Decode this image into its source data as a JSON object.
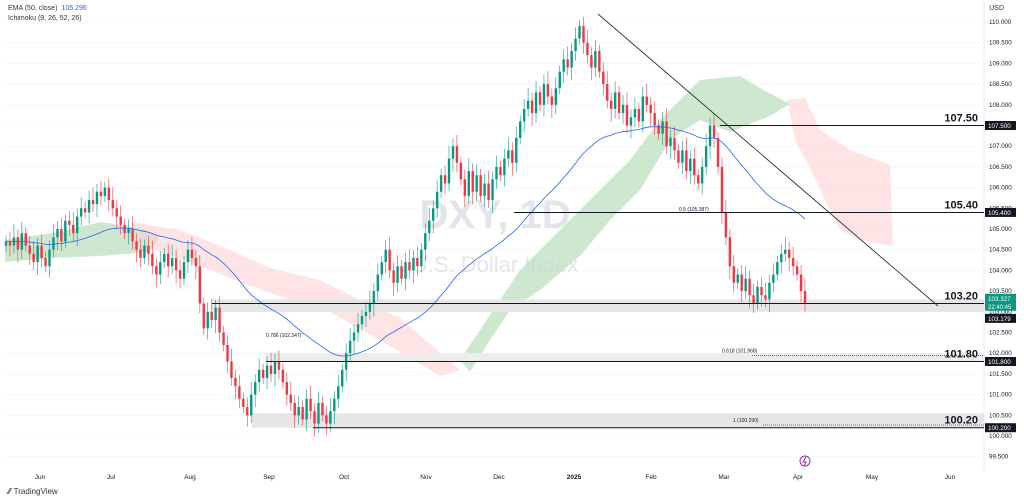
{
  "legend": {
    "ema_label": "EMA (50, close)",
    "ema_value": "105.296",
    "ichimoku_label": "Ichimoku (9, 26, 52, 26)"
  },
  "watermark": {
    "symbol": "DXY, 1D",
    "name": "U.S. Dollar Index"
  },
  "currency_label": "USD",
  "brand": "TradingView",
  "colors": {
    "up": "#089981",
    "down": "#f23645",
    "ema": "#2962ff",
    "cloud_green": "#a5d6a7",
    "cloud_red": "#ffcdd2"
  },
  "chart_data": {
    "type": "candlestick",
    "x_axis_labels": [
      "Jun",
      "Jul",
      "Aug",
      "Sep",
      "Oct",
      "Nov",
      "Dec",
      "2025",
      "Feb",
      "Mar",
      "Apr",
      "May",
      "Jun"
    ],
    "y_ticks": [
      "110.000",
      "109.500",
      "109.000",
      "108.500",
      "108.000",
      "107.500",
      "107.000",
      "106.500",
      "106.000",
      "105.500",
      "105.000",
      "104.500",
      "104.000",
      "103.500",
      "103.000",
      "102.500",
      "102.000",
      "101.500",
      "101.000",
      "100.500",
      "100.000",
      "99.500"
    ],
    "ylim": [
      99.5,
      110.3
    ],
    "levels": [
      {
        "label": "107.50",
        "value": 107.5,
        "tag": "107.500"
      },
      {
        "label": "105.40",
        "value": 105.4,
        "tag": "105.400"
      },
      {
        "label": "103.20",
        "value": 103.2,
        "tag": "103.200"
      },
      {
        "label": "101.80",
        "value": 101.8,
        "tag": "101.800"
      },
      {
        "label": "100.20",
        "value": 100.2,
        "tag": "100.200"
      }
    ],
    "fib_labels": [
      {
        "text": "0.5 (105.387)",
        "value": 105.387
      },
      {
        "text": "0.786 (102.347)",
        "value": 102.347
      },
      {
        "text": "0.618 (101.968)",
        "value": 101.968
      },
      {
        "text": "1 (100.290)",
        "value": 100.29
      }
    ],
    "price_tags": [
      {
        "text": "103.327",
        "sub": "22:40:45",
        "value": 103.327
      },
      {
        "text": "103.179",
        "value": 103.179
      }
    ],
    "close_series": [
      104.7,
      104.6,
      104.8,
      104.5,
      104.9,
      104.6,
      104.4,
      104.2,
      104.6,
      104.3,
      104.1,
      104.5,
      104.8,
      105.0,
      104.7,
      105.2,
      105.1,
      104.9,
      105.3,
      105.5,
      105.4,
      105.7,
      105.6,
      105.9,
      105.8,
      106.0,
      105.7,
      105.5,
      105.3,
      105.1,
      104.9,
      105.0,
      104.7,
      104.5,
      104.3,
      104.6,
      104.4,
      104.1,
      103.9,
      104.2,
      104.4,
      104.1,
      104.3,
      104.0,
      103.8,
      104.2,
      104.5,
      104.3,
      104.1,
      103.2,
      102.6,
      103.0,
      102.8,
      103.1,
      102.5,
      102.2,
      101.8,
      101.4,
      101.2,
      100.9,
      100.7,
      100.5,
      101.0,
      101.3,
      101.6,
      101.4,
      101.7,
      101.5,
      101.8,
      101.6,
      101.3,
      101.0,
      100.8,
      100.5,
      100.7,
      100.4,
      100.9,
      100.6,
      100.3,
      100.8,
      100.5,
      100.3,
      100.6,
      100.9,
      101.2,
      101.6,
      102.0,
      102.3,
      102.5,
      102.7,
      102.9,
      103.0,
      103.2,
      103.5,
      103.9,
      104.2,
      104.5,
      104.0,
      103.7,
      104.1,
      103.8,
      104.2,
      104.0,
      104.3,
      104.1,
      104.5,
      104.9,
      105.2,
      105.5,
      105.9,
      106.3,
      106.1,
      106.7,
      107.0,
      106.6,
      106.2,
      105.8,
      106.4,
      105.9,
      106.3,
      105.8,
      106.1,
      105.7,
      106.2,
      106.5,
      106.3,
      106.7,
      106.9,
      106.6,
      107.2,
      107.6,
      107.9,
      108.1,
      107.8,
      108.3,
      108.0,
      108.5,
      108.2,
      108.0,
      108.4,
      108.8,
      109.1,
      108.9,
      109.3,
      109.6,
      109.9,
      109.5,
      109.2,
      108.9,
      109.3,
      108.8,
      108.5,
      108.1,
      107.9,
      108.3,
      107.8,
      108.0,
      107.5,
      107.7,
      107.9,
      107.6,
      108.2,
      108.0,
      107.8,
      107.5,
      107.3,
      107.6,
      107.0,
      107.2,
      106.9,
      106.6,
      106.9,
      106.4,
      106.7,
      106.3,
      106.1,
      106.5,
      107.0,
      107.5,
      107.2,
      106.5,
      105.4,
      104.8,
      104.1,
      103.7,
      103.9,
      103.5,
      103.8,
      103.4,
      103.2,
      103.6,
      103.4,
      103.3,
      103.7,
      103.9,
      104.2,
      104.4,
      104.5,
      104.3,
      104.1,
      103.9,
      103.5,
      103.2
    ]
  }
}
